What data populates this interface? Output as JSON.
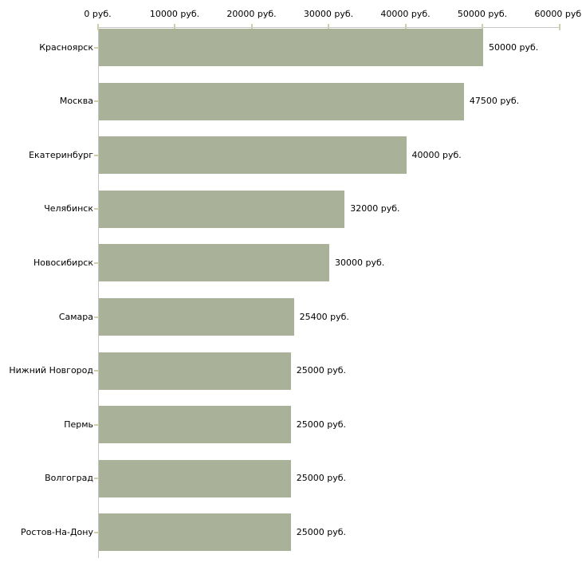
{
  "chart_data": {
    "type": "bar",
    "orientation": "horizontal",
    "title": "",
    "xlabel": "",
    "ylabel": "",
    "categories": [
      "Красноярск",
      "Москва",
      "Екатеринбург",
      "Челябинск",
      "Новосибирск",
      "Самара",
      "Нижний Новгород",
      "Пермь",
      "Волгоград",
      "Ростов-На-Дону"
    ],
    "values": [
      50000,
      47500,
      40000,
      32000,
      30000,
      25400,
      25000,
      25000,
      25000,
      25000
    ],
    "value_labels": [
      "50000 руб.",
      "47500 руб.",
      "40000 руб.",
      "32000 руб.",
      "30000 руб.",
      "25400 руб.",
      "25000 руб.",
      "25000 руб.",
      "25000 руб.",
      "25000 руб."
    ],
    "x_ticks": [
      0,
      10000,
      20000,
      30000,
      40000,
      50000,
      60000
    ],
    "x_tick_labels": [
      "0 руб.",
      "10000 руб.",
      "20000 руб.",
      "30000 руб.",
      "40000 руб.",
      "50000 руб.",
      "60000 руб."
    ],
    "xlim": [
      0,
      60000
    ],
    "grid": false,
    "legend": null,
    "colors": {
      "bar_fill": "#a9b299",
      "axis_line": "#c6c6c6",
      "tick_mark": "#cdd0ab",
      "text": "#000000",
      "background": "#ffffff"
    }
  }
}
